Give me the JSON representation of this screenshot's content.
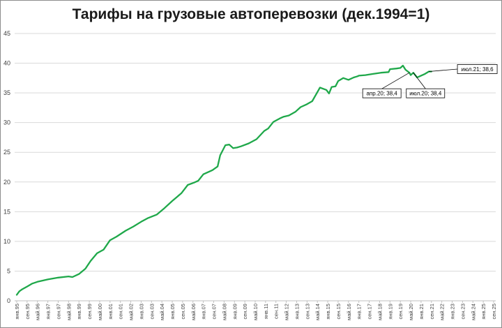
{
  "chart_data": {
    "type": "line",
    "title": "Тарифы  на грузовые автоперевозки  (дек.1994=1)",
    "xlabel": "",
    "ylabel": "",
    "ylim": [
      0,
      45
    ],
    "yticks": [
      0,
      5,
      10,
      15,
      20,
      25,
      30,
      35,
      40,
      45
    ],
    "grid": true,
    "legend": "none",
    "line_color": "#1fa84a",
    "x_tick_labels": [
      "янв.95",
      "сен.95",
      "май.96",
      "янв.97",
      "сен.97",
      "май.98",
      "янв.99",
      "сен.99",
      "май.00",
      "янв.01",
      "сен.01",
      "май.02",
      "янв.03",
      "сен.03",
      "май.04",
      "янв.05",
      "сен.05",
      "май.06",
      "янв.07",
      "сен.07",
      "май.08",
      "янв.09",
      "сен.09",
      "май.10",
      "янв.11",
      "сен.11",
      "май.12",
      "янв.13",
      "сен.13",
      "май.14",
      "янв.15",
      "сен.15",
      "май.16",
      "янв.17",
      "сен.17",
      "май.18",
      "янв.19",
      "сен.19",
      "май.20",
      "янв.21",
      "сен.21",
      "май.22",
      "янв.23",
      "сен.23",
      "май.24",
      "янв.25",
      "сен.25"
    ],
    "series": [
      {
        "x": [
          "1995-01",
          "1995-03",
          "1995-05",
          "1995-09",
          "1996-01",
          "1996-05",
          "1997-01",
          "1997-09",
          "1998-05",
          "1998-08",
          "1999-01",
          "1999-06",
          "1999-10",
          "2000-03",
          "2000-08",
          "2001-01",
          "2001-06",
          "2002-01",
          "2002-07",
          "2003-01",
          "2003-06",
          "2004-01",
          "2004-07",
          "2005-01",
          "2005-08",
          "2006-01",
          "2006-06",
          "2006-09",
          "2007-01",
          "2007-08",
          "2007-12",
          "2008-02",
          "2008-06",
          "2008-09",
          "2008-12",
          "2009-03",
          "2009-06",
          "2009-12",
          "2010-06",
          "2010-12",
          "2011-03",
          "2011-07",
          "2011-12",
          "2012-03",
          "2012-07",
          "2012-12",
          "2013-04",
          "2013-09",
          "2014-01",
          "2014-07",
          "2014-12",
          "2015-02",
          "2015-04",
          "2015-07",
          "2015-09",
          "2016-01",
          "2016-05",
          "2016-09",
          "2016-12",
          "2017-01",
          "2017-06",
          "2017-12",
          "2018-06",
          "2018-12",
          "2019-01",
          "2019-06",
          "2019-09",
          "2019-11",
          "2020-01",
          "2020-04",
          "2020-05",
          "2020-07",
          "2020-10",
          "2021-01",
          "2021-04",
          "2021-07",
          "2021-09"
        ],
        "values": [
          1.0,
          1.6,
          1.9,
          2.4,
          2.9,
          3.2,
          3.6,
          3.9,
          4.1,
          4.0,
          4.5,
          5.4,
          6.7,
          8.0,
          8.6,
          10.2,
          10.8,
          11.8,
          12.5,
          13.3,
          13.9,
          14.5,
          15.6,
          16.8,
          18.1,
          19.5,
          19.9,
          20.2,
          21.3,
          22.0,
          22.6,
          24.5,
          26.2,
          26.3,
          25.7,
          25.8,
          26.0,
          26.5,
          27.2,
          28.6,
          29.0,
          30.1,
          30.7,
          31.0,
          31.2,
          31.8,
          32.6,
          33.1,
          33.6,
          35.9,
          35.5,
          34.9,
          36.0,
          36.1,
          37.0,
          37.5,
          37.2,
          37.6,
          37.8,
          37.9,
          38.0,
          38.2,
          38.4,
          38.5,
          39.0,
          39.1,
          39.2,
          39.6,
          38.9,
          38.4,
          38.0,
          38.4,
          37.6,
          37.9,
          38.2,
          38.6,
          38.6
        ]
      }
    ],
    "annotations": [
      {
        "id": "ann-apr20",
        "text": "апр.20; 38,4",
        "x": "2020-04",
        "y": 38.4,
        "placement": "below-left"
      },
      {
        "id": "ann-jul20",
        "text": "июл.20; 38,4",
        "x": "2020-07",
        "y": 38.4,
        "placement": "below-right"
      },
      {
        "id": "ann-jul21",
        "text": "июл.21; 38,6",
        "x": "2021-07",
        "y": 38.6,
        "placement": "above-right"
      }
    ]
  }
}
